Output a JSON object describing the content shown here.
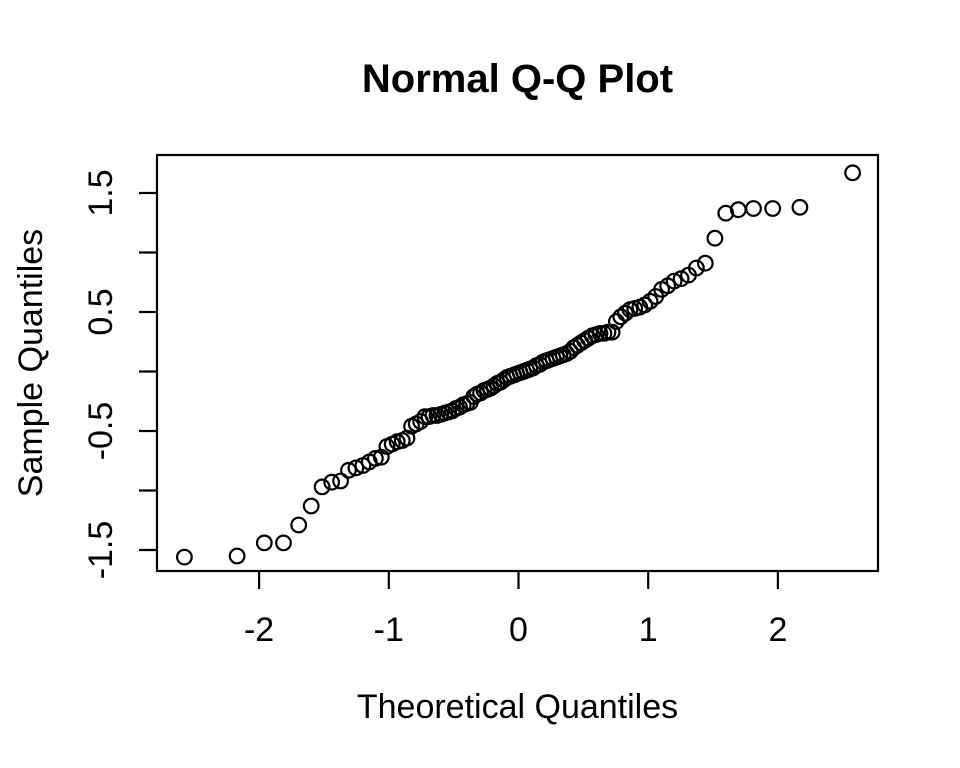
{
  "chart_data": {
    "type": "scatter",
    "title": "Normal Q-Q Plot",
    "xlabel": "Theoretical Quantiles",
    "ylabel": "Sample Quantiles",
    "marker": "open-circle",
    "marker_color": "#000000",
    "background_color": "#ffffff",
    "grid": false,
    "legend": null,
    "n_points": 100,
    "xlim": [
      -2.78,
      2.78
    ],
    "ylim": [
      -1.68,
      1.82
    ],
    "x_ticks": {
      "values": [
        -2,
        -1,
        0,
        1,
        2
      ],
      "labels": [
        "-2",
        "-1",
        "0",
        "1",
        "2"
      ]
    },
    "y_ticks": {
      "values": [
        -1.5,
        -1.0,
        -0.5,
        0.0,
        0.5,
        1.0,
        1.5
      ],
      "labeled_values": [
        -1.5,
        -0.5,
        0.5,
        1.5
      ],
      "labels": [
        "-1.5",
        "-0.5",
        "0.5",
        "1.5"
      ]
    },
    "x": [
      -2.576,
      -2.17,
      -1.96,
      -1.812,
      -1.695,
      -1.598,
      -1.514,
      -1.44,
      -1.372,
      -1.311,
      -1.254,
      -1.2,
      -1.15,
      -1.103,
      -1.058,
      -1.015,
      -0.974,
      -0.935,
      -0.896,
      -0.86,
      -0.824,
      -0.789,
      -0.755,
      -0.722,
      -0.69,
      -0.659,
      -0.628,
      -0.598,
      -0.568,
      -0.539,
      -0.51,
      -0.482,
      -0.454,
      -0.426,
      -0.399,
      -0.372,
      -0.345,
      -0.319,
      -0.292,
      -0.266,
      -0.24,
      -0.215,
      -0.189,
      -0.164,
      -0.138,
      -0.113,
      -0.088,
      -0.063,
      -0.038,
      -0.013,
      0.013,
      0.038,
      0.063,
      0.088,
      0.113,
      0.138,
      0.164,
      0.189,
      0.215,
      0.24,
      0.266,
      0.292,
      0.319,
      0.345,
      0.372,
      0.399,
      0.426,
      0.454,
      0.482,
      0.51,
      0.539,
      0.568,
      0.598,
      0.628,
      0.659,
      0.69,
      0.722,
      0.755,
      0.789,
      0.824,
      0.86,
      0.896,
      0.935,
      0.974,
      1.015,
      1.058,
      1.103,
      1.15,
      1.2,
      1.254,
      1.311,
      1.372,
      1.44,
      1.514,
      1.598,
      1.695,
      1.812,
      1.96,
      2.17,
      2.576
    ],
    "y": [
      -1.56,
      -1.55,
      -1.44,
      -1.44,
      -1.29,
      -1.13,
      -0.97,
      -0.93,
      -0.92,
      -0.83,
      -0.81,
      -0.79,
      -0.76,
      -0.73,
      -0.72,
      -0.63,
      -0.61,
      -0.59,
      -0.58,
      -0.56,
      -0.46,
      -0.44,
      -0.42,
      -0.38,
      -0.38,
      -0.37,
      -0.37,
      -0.36,
      -0.35,
      -0.34,
      -0.33,
      -0.31,
      -0.3,
      -0.28,
      -0.27,
      -0.26,
      -0.21,
      -0.19,
      -0.18,
      -0.16,
      -0.15,
      -0.14,
      -0.12,
      -0.1,
      -0.09,
      -0.07,
      -0.05,
      -0.04,
      -0.03,
      -0.02,
      -0.01,
      0.0,
      0.01,
      0.02,
      0.03,
      0.05,
      0.06,
      0.08,
      0.09,
      0.1,
      0.11,
      0.12,
      0.13,
      0.14,
      0.15,
      0.17,
      0.2,
      0.22,
      0.24,
      0.26,
      0.28,
      0.3,
      0.31,
      0.32,
      0.32,
      0.33,
      0.33,
      0.42,
      0.46,
      0.49,
      0.52,
      0.53,
      0.54,
      0.56,
      0.59,
      0.63,
      0.69,
      0.72,
      0.76,
      0.78,
      0.81,
      0.87,
      0.91,
      1.12,
      1.33,
      1.36,
      1.37,
      1.37,
      1.38,
      1.67
    ]
  }
}
